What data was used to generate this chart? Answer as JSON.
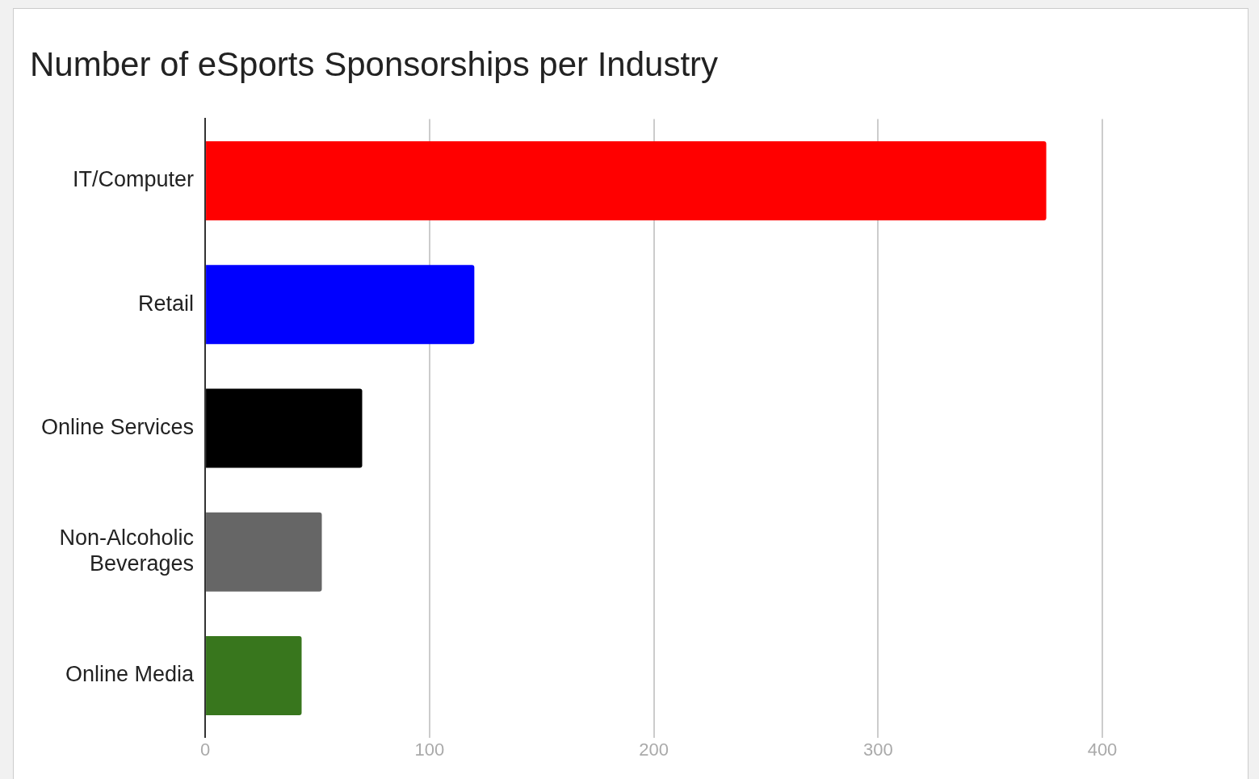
{
  "chart_data": {
    "type": "bar",
    "orientation": "horizontal",
    "title": "Number of eSports Sponsorships per Industry",
    "categories": [
      "IT/Computer",
      "Retail",
      "Online Services",
      "Non-Alcoholic Beverages",
      "Online Media"
    ],
    "values": [
      375,
      120,
      70,
      52,
      43
    ],
    "colors": [
      "#ff0000",
      "#0000ff",
      "#000000",
      "#666666",
      "#38761d"
    ],
    "xlim": [
      0,
      400
    ],
    "xticks": [
      0,
      100,
      200,
      300,
      400
    ],
    "grid": "x",
    "legend": false
  }
}
